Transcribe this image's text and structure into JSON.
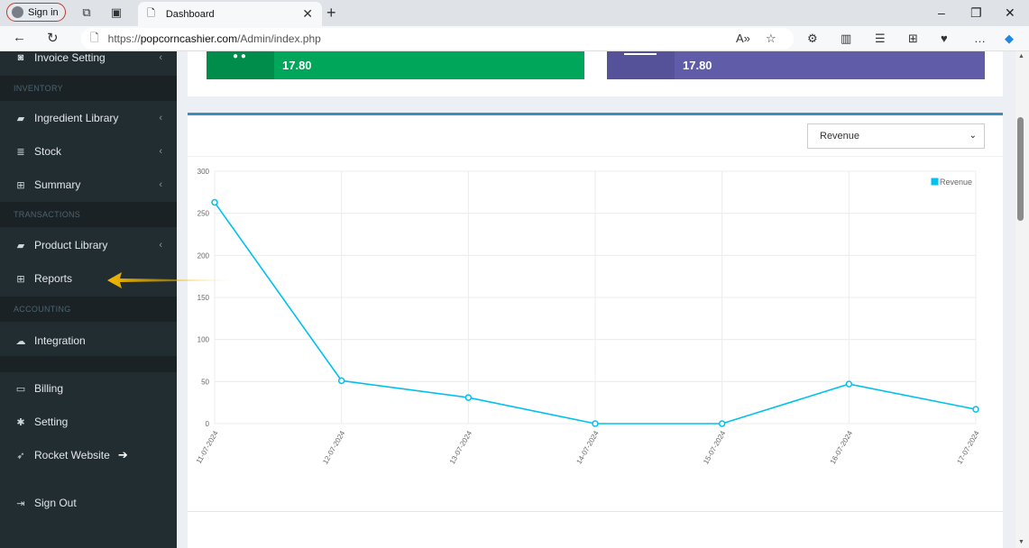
{
  "browser": {
    "signin_label": "Sign in",
    "tab_title": "Dashboard",
    "url_prefix": "https://",
    "url_domain": "popcorncashier.com",
    "url_path": "/Admin/index.php"
  },
  "sidebar": {
    "items": [
      {
        "label": "Invoice Setting",
        "icon": "camera-icon"
      },
      {
        "header": "INVENTORY"
      },
      {
        "label": "Ingredient Library",
        "icon": "book-icon"
      },
      {
        "label": "Stock",
        "icon": "database-icon"
      },
      {
        "label": "Summary",
        "icon": "table-icon"
      },
      {
        "header": "TRANSACTIONS"
      },
      {
        "label": "Product Library",
        "icon": "book-icon"
      },
      {
        "label": "Reports",
        "icon": "table-icon"
      },
      {
        "header": "ACCOUNTING"
      },
      {
        "label": "Integration",
        "icon": "cloud-icon"
      },
      {
        "label": "Billing",
        "icon": "credit-card-icon"
      },
      {
        "label": "Setting",
        "icon": "gear-icon"
      },
      {
        "label": "Rocket Website",
        "icon": "rocket-icon"
      },
      {
        "label": "Sign Out",
        "icon": "sign-out-icon"
      }
    ]
  },
  "stats": {
    "green_value": "17.80",
    "purple_value": "17.80",
    "green_color": "#00a65a",
    "purple_color": "#605ca8"
  },
  "chart_select": {
    "selected": "Revenue"
  },
  "chart_data": {
    "type": "line",
    "categories": [
      "11-07-2024",
      "12-07-2024",
      "13-07-2024",
      "14-07-2024",
      "15-07-2024",
      "16-07-2024",
      "17-07-2024"
    ],
    "series": [
      {
        "name": "Revenue",
        "values": [
          263,
          51,
          31,
          0,
          0,
          47,
          17
        ],
        "color": "#00c0ef"
      }
    ],
    "ylim": [
      0,
      300
    ],
    "yticks": [
      0,
      50,
      100,
      150,
      200,
      250,
      300
    ],
    "legend_position": "top-right",
    "grid": true
  }
}
